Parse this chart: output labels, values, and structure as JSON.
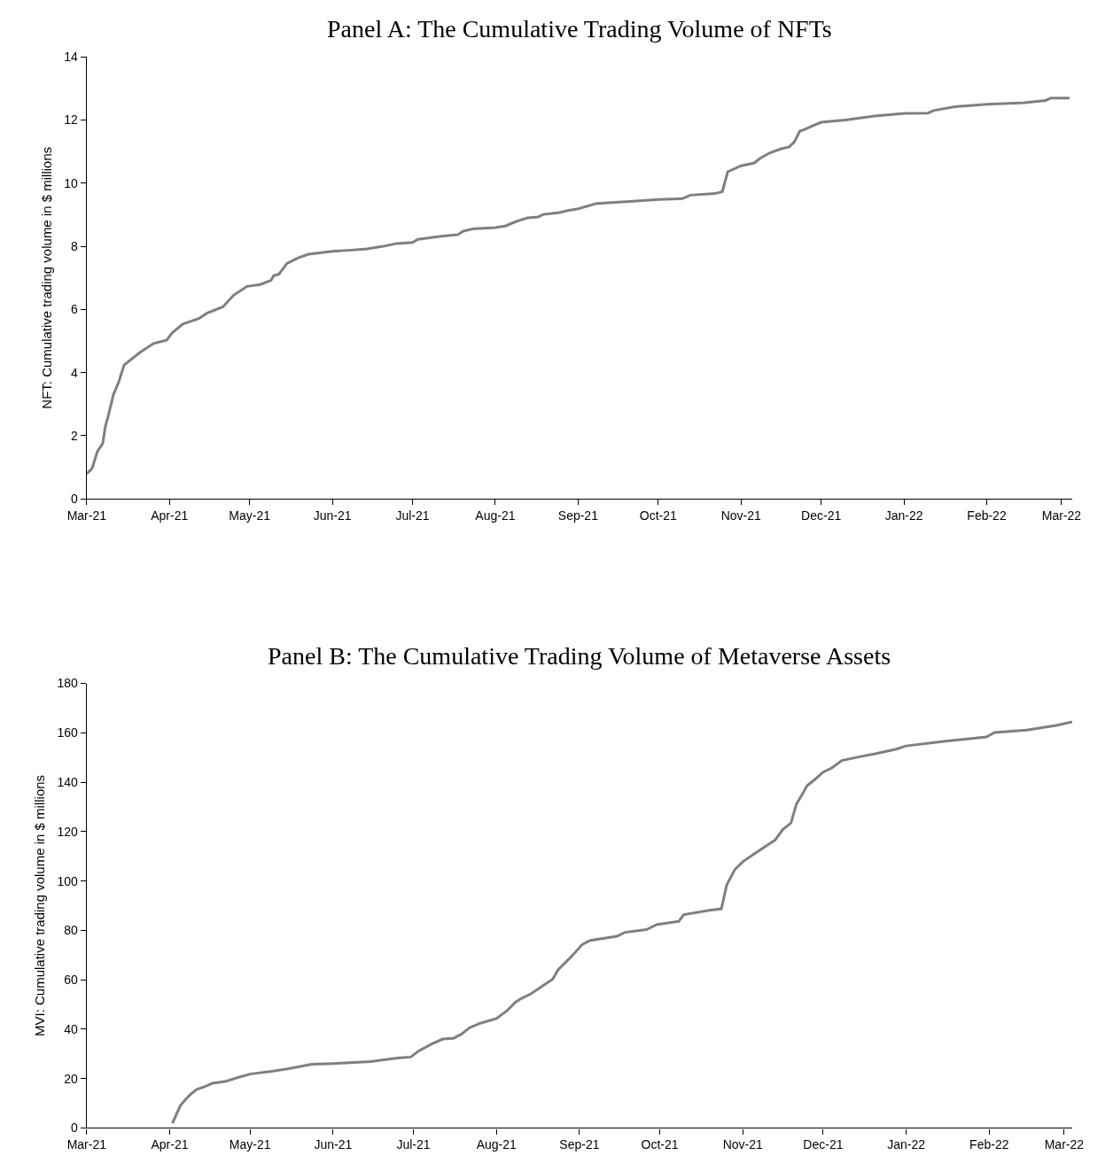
{
  "chart_data": [
    {
      "type": "line",
      "title": "Panel A: The Cumulative Trading Volume of NFTs",
      "ylabel": "NFT: Cumulative trading volume in $ millions",
      "xlim": [
        "2021-03-01",
        "2022-03-05"
      ],
      "ylim": [
        0,
        14
      ],
      "yticks": [
        0,
        2,
        4,
        6,
        8,
        10,
        12,
        14
      ],
      "xticks": [
        {
          "value": "2021-03-01",
          "label": "Mar-21"
        },
        {
          "value": "2021-04-01",
          "label": "Apr-21"
        },
        {
          "value": "2021-05-01",
          "label": "May-21"
        },
        {
          "value": "2021-06-01",
          "label": "Jun-21"
        },
        {
          "value": "2021-07-01",
          "label": "Jul-21"
        },
        {
          "value": "2021-08-01",
          "label": "Aug-21"
        },
        {
          "value": "2021-09-01",
          "label": "Sep-21"
        },
        {
          "value": "2021-10-01",
          "label": "Oct-21"
        },
        {
          "value": "2021-11-01",
          "label": "Nov-21"
        },
        {
          "value": "2021-12-01",
          "label": "Dec-21"
        },
        {
          "value": "2022-01-01",
          "label": "Jan-22"
        },
        {
          "value": "2022-02-01",
          "label": "Feb-22"
        },
        {
          "value": "2022-03-01",
          "label": "Mar-22"
        }
      ],
      "marker": "none",
      "line_style": "solid",
      "series": [
        {
          "color": "#7f7f7f",
          "x": [
            "2021-03-01",
            "2021-03-03",
            "2021-03-05",
            "2021-03-07",
            "2021-03-08",
            "2021-03-09",
            "2021-03-11",
            "2021-03-13",
            "2021-03-15",
            "2021-03-21",
            "2021-03-26",
            "2021-03-31",
            "2021-04-02",
            "2021-04-06",
            "2021-04-12",
            "2021-04-15",
            "2021-04-21",
            "2021-04-25",
            "2021-04-30",
            "2021-05-05",
            "2021-05-09",
            "2021-05-10",
            "2021-05-12",
            "2021-05-15",
            "2021-05-19",
            "2021-05-23",
            "2021-06-01",
            "2021-06-08",
            "2021-06-14",
            "2021-06-20",
            "2021-06-25",
            "2021-07-01",
            "2021-07-03",
            "2021-07-11",
            "2021-07-18",
            "2021-07-20",
            "2021-07-24",
            "2021-08-01",
            "2021-08-05",
            "2021-08-08",
            "2021-08-10",
            "2021-08-13",
            "2021-08-17",
            "2021-08-19",
            "2021-08-25",
            "2021-08-28",
            "2021-09-01",
            "2021-09-08",
            "2021-09-20",
            "2021-10-01",
            "2021-10-10",
            "2021-10-13",
            "2021-10-22",
            "2021-10-25",
            "2021-10-27",
            "2021-11-01",
            "2021-11-06",
            "2021-11-08",
            "2021-11-12",
            "2021-11-16",
            "2021-11-19",
            "2021-11-21",
            "2021-11-23",
            "2021-11-25",
            "2021-11-28",
            "2021-12-01",
            "2021-12-10",
            "2021-12-21",
            "2022-01-01",
            "2022-01-10",
            "2022-01-12",
            "2022-01-20",
            "2022-02-01",
            "2022-02-15",
            "2022-02-23",
            "2022-02-25",
            "2022-03-04"
          ],
          "values": [
            0.79,
            0.96,
            1.5,
            1.75,
            2.3,
            2.6,
            3.3,
            3.7,
            4.24,
            4.64,
            4.92,
            5.03,
            5.26,
            5.54,
            5.71,
            5.88,
            6.08,
            6.45,
            6.73,
            6.79,
            6.92,
            7.07,
            7.12,
            7.46,
            7.63,
            7.75,
            7.84,
            7.88,
            7.92,
            8.0,
            8.09,
            8.12,
            8.22,
            8.31,
            8.37,
            8.48,
            8.56,
            8.59,
            8.65,
            8.76,
            8.82,
            8.9,
            8.93,
            9.01,
            9.07,
            9.13,
            9.19,
            9.36,
            9.42,
            9.48,
            9.51,
            9.62,
            9.67,
            9.73,
            10.36,
            10.55,
            10.64,
            10.78,
            10.97,
            11.09,
            11.15,
            11.31,
            11.65,
            11.71,
            11.82,
            11.93,
            12.0,
            12.13,
            12.21,
            12.22,
            12.3,
            12.42,
            12.5,
            12.55,
            12.62,
            12.7,
            12.7
          ]
        }
      ]
    },
    {
      "type": "line",
      "title": "Panel B: The Cumulative Trading Volume of Metaverse Assets",
      "ylabel": "MVI: Cumulative trading volume in $ millions",
      "xlim": [
        "2021-03-01",
        "2022-03-04"
      ],
      "ylim": [
        0,
        180
      ],
      "yticks": [
        0,
        20,
        40,
        60,
        80,
        100,
        120,
        140,
        160,
        180
      ],
      "xticks": [
        {
          "value": "2021-03-01",
          "label": "Mar-21"
        },
        {
          "value": "2021-04-01",
          "label": "Apr-21"
        },
        {
          "value": "2021-05-01",
          "label": "May-21"
        },
        {
          "value": "2021-06-01",
          "label": "Jun-21"
        },
        {
          "value": "2021-07-01",
          "label": "Jul-21"
        },
        {
          "value": "2021-08-01",
          "label": "Aug-21"
        },
        {
          "value": "2021-09-01",
          "label": "Sep-21"
        },
        {
          "value": "2021-10-01",
          "label": "Oct-21"
        },
        {
          "value": "2021-11-01",
          "label": "Nov-21"
        },
        {
          "value": "2021-12-01",
          "label": "Dec-21"
        },
        {
          "value": "2022-01-01",
          "label": "Jan-22"
        },
        {
          "value": "2022-02-01",
          "label": "Feb-22"
        },
        {
          "value": "2022-03-01",
          "label": "Mar-22"
        }
      ],
      "marker": "none",
      "line_style": "solid",
      "series": [
        {
          "color": "#7f7f7f",
          "x": [
            "2021-04-02",
            "2021-04-05",
            "2021-04-07",
            "2021-04-09",
            "2021-04-11",
            "2021-04-14",
            "2021-04-17",
            "2021-04-22",
            "2021-04-27",
            "2021-05-01",
            "2021-05-09",
            "2021-05-15",
            "2021-05-24",
            "2021-06-01",
            "2021-06-15",
            "2021-06-25",
            "2021-06-30",
            "2021-07-03",
            "2021-07-08",
            "2021-07-12",
            "2021-07-16",
            "2021-07-19",
            "2021-07-22",
            "2021-07-26",
            "2021-08-01",
            "2021-08-05",
            "2021-08-08",
            "2021-08-10",
            "2021-08-14",
            "2021-08-19",
            "2021-08-22",
            "2021-08-24",
            "2021-08-29",
            "2021-09-02",
            "2021-09-05",
            "2021-09-15",
            "2021-09-18",
            "2021-09-26",
            "2021-09-30",
            "2021-10-08",
            "2021-10-10",
            "2021-10-20",
            "2021-10-24",
            "2021-10-26",
            "2021-10-29",
            "2021-11-01",
            "2021-11-06",
            "2021-11-10",
            "2021-11-13",
            "2021-11-16",
            "2021-11-19",
            "2021-11-21",
            "2021-11-23",
            "2021-11-25",
            "2021-11-28",
            "2021-12-01",
            "2021-12-04",
            "2021-12-08",
            "2021-12-15",
            "2021-12-20",
            "2021-12-28",
            "2022-01-01",
            "2022-01-15",
            "2022-01-31",
            "2022-02-03",
            "2022-02-15",
            "2022-02-26",
            "2022-03-04"
          ],
          "values": [
            1.9,
            9.1,
            11.6,
            13.8,
            15.5,
            16.7,
            18.1,
            18.9,
            20.6,
            21.8,
            22.9,
            23.9,
            25.8,
            26.1,
            26.9,
            28.3,
            28.7,
            31.2,
            34.1,
            36.0,
            36.3,
            38.0,
            40.6,
            42.4,
            44.3,
            47.5,
            50.8,
            52.2,
            54.4,
            58.1,
            60.2,
            64.0,
            69.4,
            74.2,
            75.9,
            77.6,
            79.2,
            80.3,
            82.4,
            83.6,
            86.4,
            88.2,
            88.7,
            98.4,
            104.6,
            107.8,
            111.5,
            114.4,
            116.5,
            120.9,
            123.5,
            131.1,
            134.7,
            138.6,
            141.2,
            144.1,
            145.6,
            148.8,
            150.4,
            151.4,
            153.3,
            154.7,
            156.5,
            158.3,
            160.1,
            161.1,
            163.0,
            164.4
          ]
        }
      ]
    }
  ]
}
